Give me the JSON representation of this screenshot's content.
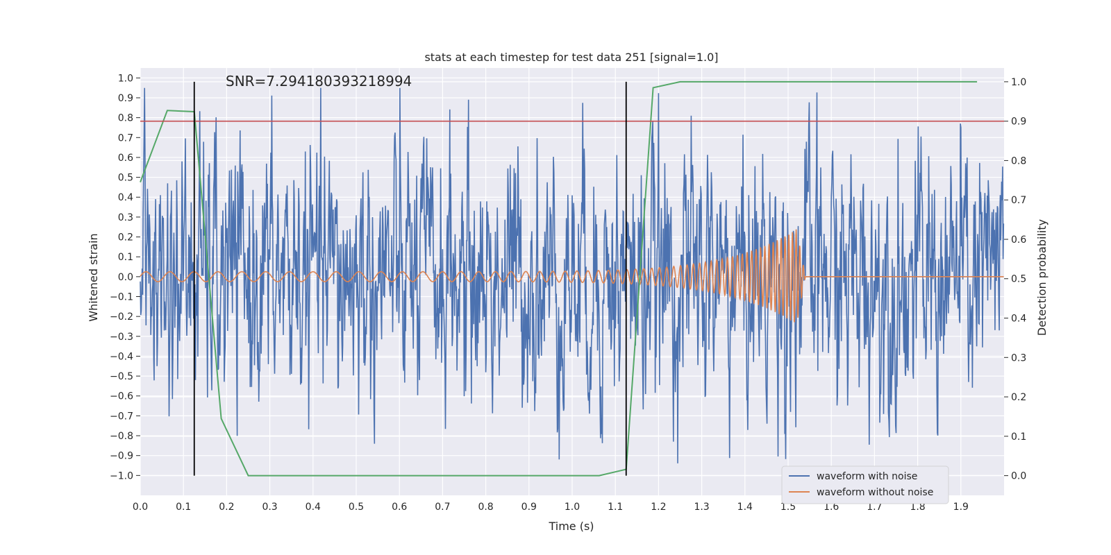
{
  "chart_data": {
    "type": "line",
    "title": "stats at each timestep for test data 251 [signal=1.0]",
    "xlabel": "Time (s)",
    "ylabel": "Whitened strain",
    "y2label": "Detection probability",
    "annotation": "SNR=7.294180393218994",
    "xlim": [
      0.0,
      2.0
    ],
    "ylim": [
      -1.1,
      1.05
    ],
    "y2lim": [
      -0.05,
      1.035
    ],
    "grid": true,
    "legend_position": "lower-right",
    "x_ticks": [
      "0.0",
      "0.1",
      "0.2",
      "0.3",
      "0.4",
      "0.5",
      "0.6",
      "0.7",
      "0.8",
      "0.9",
      "1.0",
      "1.1",
      "1.2",
      "1.3",
      "1.4",
      "1.5",
      "1.6",
      "1.7",
      "1.8",
      "1.9"
    ],
    "y_ticks": [
      "1.0",
      "0.9",
      "0.8",
      "0.7",
      "0.6",
      "0.5",
      "0.4",
      "0.3",
      "0.2",
      "0.1",
      "0.0",
      "-0.1",
      "-0.2",
      "-0.3",
      "-0.4",
      "-0.5",
      "-0.6",
      "-0.7",
      "-0.8",
      "-0.9",
      "-1.0"
    ],
    "y2_ticks": [
      "1.0",
      "0.9",
      "0.8",
      "0.7",
      "0.6",
      "0.5",
      "0.4",
      "0.3",
      "0.2",
      "0.1",
      "0.0"
    ],
    "series": [
      {
        "name": "waveform with noise",
        "color": "#4c72b0",
        "axis": "left",
        "description_values": "noisy whitened strain, amplitude roughly within [-1.0, 0.95], 1 s of signal sampled densely over 0–2 s",
        "amplitude": 0.32
      },
      {
        "name": "waveform without noise",
        "color": "#dd8452",
        "axis": "left",
        "chirp": {
          "start_amplitude": 0.025,
          "peak_amplitude": 0.24,
          "merger_time": 1.52,
          "ringdown_end": 1.54,
          "start_freq_hz": 18,
          "end_freq_hz": 120
        }
      }
    ],
    "detection_probability": {
      "color": "#55a868",
      "axis": "right",
      "x": [
        0.0,
        0.0625,
        0.125,
        0.1875,
        0.25,
        0.3125,
        0.375,
        0.4375,
        0.5,
        0.5625,
        0.625,
        0.6875,
        0.75,
        0.8125,
        0.875,
        0.9375,
        1.0,
        1.0625,
        1.125,
        1.1875,
        1.25,
        1.3125,
        1.375,
        1.4375,
        1.5,
        1.5625,
        1.625,
        1.6875,
        1.75,
        1.8125,
        1.875,
        1.9375
      ],
      "y": [
        0.745,
        0.927,
        0.924,
        0.145,
        0.0,
        0.0,
        0.0,
        0.0,
        0.0,
        0.0,
        0.0,
        0.0,
        0.0,
        0.0,
        0.0,
        0.0,
        0.0,
        0.0,
        0.016,
        0.985,
        1.0,
        1.0,
        1.0,
        1.0,
        1.0,
        1.0,
        1.0,
        1.0,
        1.0,
        1.0,
        1.0,
        1.0
      ]
    },
    "threshold": {
      "color": "#c44e52",
      "value": 0.9,
      "axis": "right"
    },
    "vertical_markers": {
      "color": "#000000",
      "x": [
        0.125,
        1.125
      ],
      "axis_range": [
        0.0,
        1.0
      ]
    }
  }
}
